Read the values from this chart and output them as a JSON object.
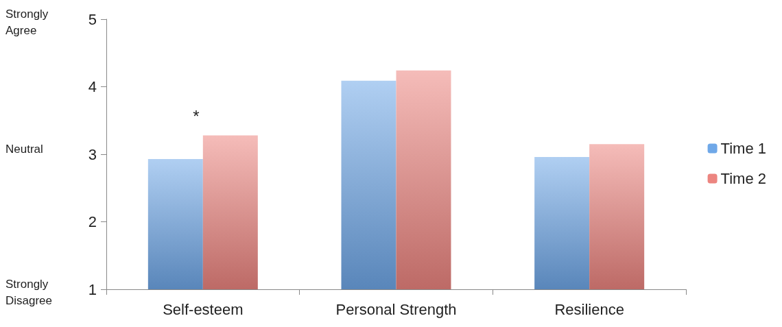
{
  "chart_data": {
    "type": "bar",
    "categories": [
      "Self-esteem",
      "Personal Strength",
      "Resilience"
    ],
    "series": [
      {
        "name": "Time 1",
        "color": "#6fa8e8",
        "values": [
          2.93,
          4.09,
          2.96
        ]
      },
      {
        "name": "Time 2",
        "color": "#ec8580",
        "values": [
          3.28,
          4.24,
          3.15
        ]
      }
    ],
    "ylim": [
      1,
      5
    ],
    "yticks": [
      1,
      2,
      3,
      4,
      5
    ],
    "grid": false,
    "legend": "right",
    "annotations": [
      "Strongly Agree",
      "Neutral",
      "Strongly Disagree",
      "*"
    ]
  }
}
